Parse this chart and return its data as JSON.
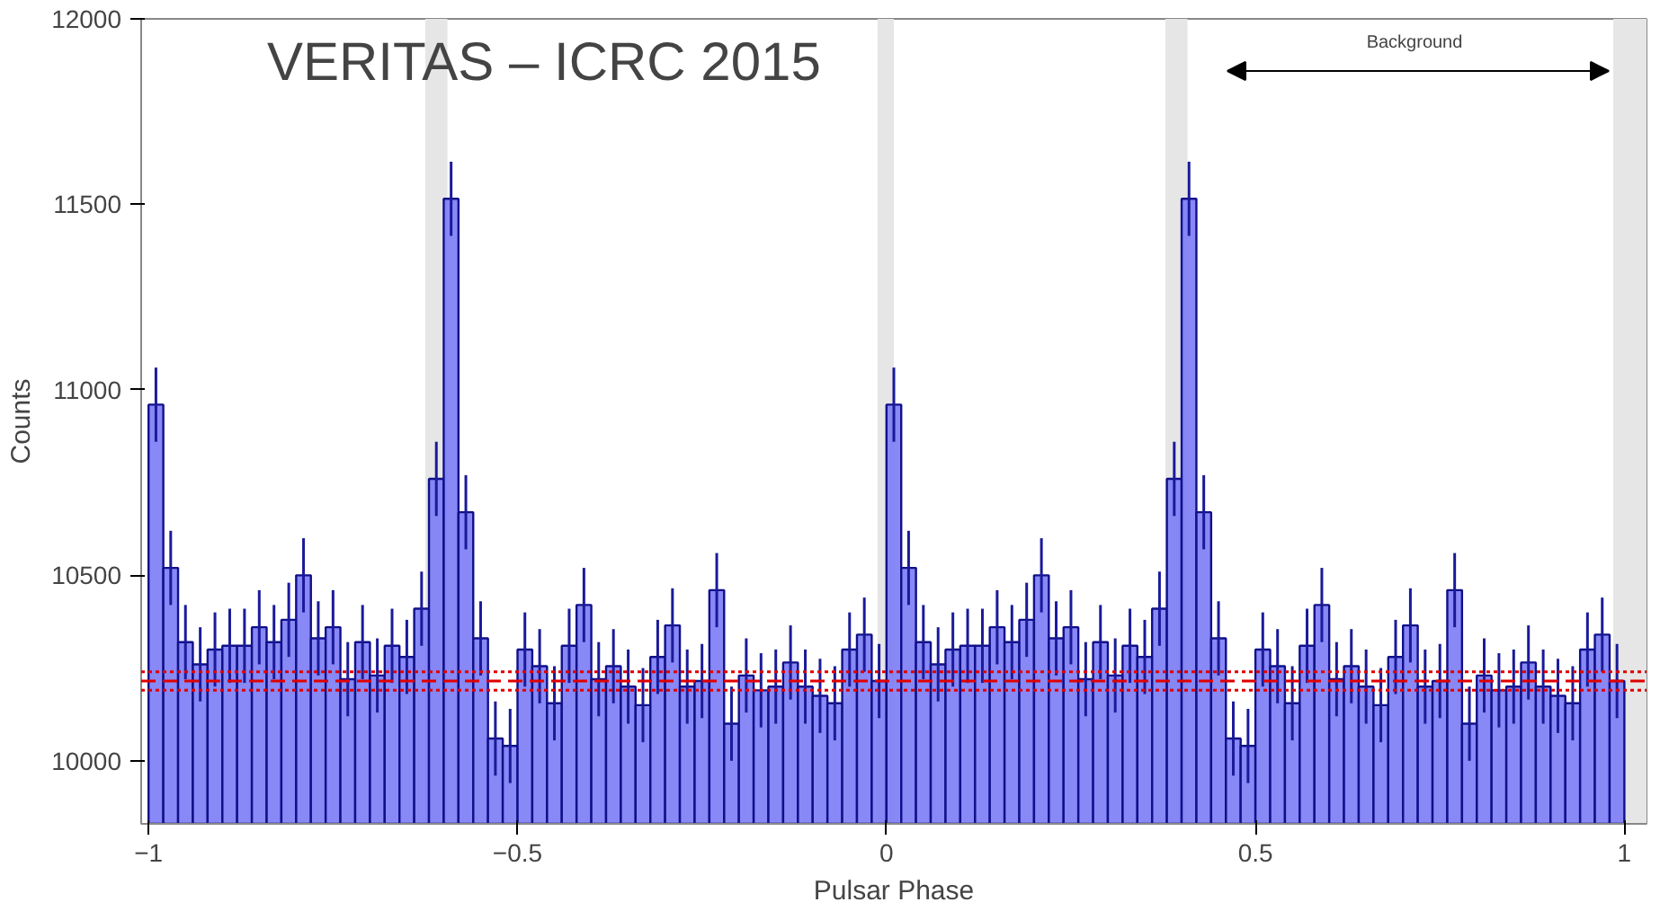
{
  "chart_data": {
    "type": "histogram",
    "xlabel": "Pulsar Phase",
    "ylabel": "Counts",
    "annotations": [
      "VERITAS – ICRC 2015",
      "Background"
    ],
    "bins": [
      -1,
      -0.98,
      -0.96,
      -0.94,
      -0.92,
      -0.9,
      -0.88,
      -0.86,
      -0.84,
      -0.82,
      -0.8,
      -0.78,
      -0.76,
      -0.74,
      -0.72,
      -0.7,
      -0.68,
      -0.66,
      -0.64,
      -0.62,
      -0.6,
      -0.58,
      -0.56,
      -0.54,
      -0.52,
      -0.5,
      -0.48,
      -0.46,
      -0.44,
      -0.42,
      -0.4,
      -0.38,
      -0.36,
      -0.34,
      -0.32,
      -0.3,
      -0.28,
      -0.26,
      -0.24,
      -0.22,
      -0.2,
      -0.18,
      -0.16,
      -0.14,
      -0.12,
      -0.1,
      -0.08,
      -0.06,
      -0.04,
      -0.02,
      0,
      0.02,
      0.04,
      0.06,
      0.08,
      0.1,
      0.12,
      0.14,
      0.16,
      0.18,
      0.2,
      0.22,
      0.24,
      0.26,
      0.28,
      0.3,
      0.32,
      0.34,
      0.36,
      0.38,
      0.4,
      0.42,
      0.44,
      0.46,
      0.48,
      0.5,
      0.52,
      0.54,
      0.56,
      0.58,
      0.6,
      0.62,
      0.64,
      0.66,
      0.68,
      0.7,
      0.72,
      0.74,
      0.76,
      0.78,
      0.8,
      0.82,
      0.84,
      0.86,
      0.88,
      0.9,
      0.92,
      0.94,
      0.96,
      0.98,
      1
    ],
    "values": [
      10960,
      10520,
      10320,
      10260,
      10300,
      10310,
      10310,
      10360,
      10320,
      10380,
      10500,
      10330,
      10360,
      10220,
      10320,
      10230,
      10310,
      10280,
      10410,
      10760,
      11515,
      10670,
      10330,
      10060,
      10040,
      10300,
      10255,
      10155,
      10310,
      10420,
      10220,
      10255,
      10200,
      10150,
      10280,
      10365,
      10200,
      10215,
      10460,
      10100,
      10230,
      10190,
      10200,
      10265,
      10200,
      10175,
      10155,
      10300,
      10340,
      10215,
      10960,
      10520,
      10320,
      10260,
      10300,
      10310,
      10310,
      10360,
      10320,
      10380,
      10500,
      10330,
      10360,
      10220,
      10320,
      10230,
      10310,
      10280,
      10410,
      10760,
      11515,
      10670,
      10330,
      10060,
      10040,
      10300,
      10255,
      10155,
      10310,
      10420,
      10220,
      10255,
      10200,
      10150,
      10280,
      10365,
      10200,
      10215,
      10460,
      10100,
      10230,
      10190,
      10200,
      10265,
      10200,
      10175,
      10155,
      10300,
      10340,
      10215
    ],
    "errors": [
      100,
      100,
      100,
      100,
      100,
      100,
      100,
      100,
      100,
      100,
      100,
      100,
      100,
      100,
      100,
      100,
      100,
      100,
      100,
      100,
      100,
      100,
      100,
      100,
      100,
      100,
      100,
      100,
      100,
      100,
      100,
      100,
      100,
      100,
      100,
      100,
      100,
      100,
      100,
      100,
      100,
      100,
      100,
      100,
      100,
      100,
      100,
      100,
      100,
      100,
      100,
      100,
      100,
      100,
      100,
      100,
      100,
      100,
      100,
      100,
      100,
      100,
      100,
      100,
      100,
      100,
      100,
      100,
      100,
      100,
      100,
      100,
      100,
      100,
      100,
      100,
      100,
      100,
      100,
      100,
      100,
      100,
      100,
      100,
      100,
      100,
      100,
      100,
      100,
      100,
      100,
      100,
      100,
      100,
      100,
      100,
      100,
      100,
      100,
      100
    ],
    "color": "#7b7bf5",
    "xlim": [
      -1.01,
      1.03
    ],
    "ylim": [
      9830,
      12000
    ],
    "xticks": [
      -1,
      -0.5,
      0,
      0.5,
      1
    ],
    "yticks": [
      10000,
      10500,
      11000,
      11500,
      12000
    ],
    "grid": false,
    "ref_lines": [
      {
        "axis": "y",
        "value": 10215,
        "color": "#e00000",
        "line_style": "dashed"
      },
      {
        "axis": "y",
        "value": 10240,
        "color": "#e00000",
        "line_style": "dotted"
      },
      {
        "axis": "y",
        "value": 10190,
        "color": "#e00000",
        "line_style": "dotted"
      }
    ],
    "bands": [
      {
        "axis": "x",
        "from": -0.625,
        "to": -0.595,
        "color": "#e6e6e6"
      },
      {
        "axis": "x",
        "from": -0.012,
        "to": 0.01,
        "color": "#e6e6e6"
      },
      {
        "axis": "x",
        "from": 0.378,
        "to": 0.408,
        "color": "#e6e6e6"
      },
      {
        "axis": "x",
        "from": 0.985,
        "to": 1.03,
        "color": "#e6e6e6"
      }
    ]
  }
}
